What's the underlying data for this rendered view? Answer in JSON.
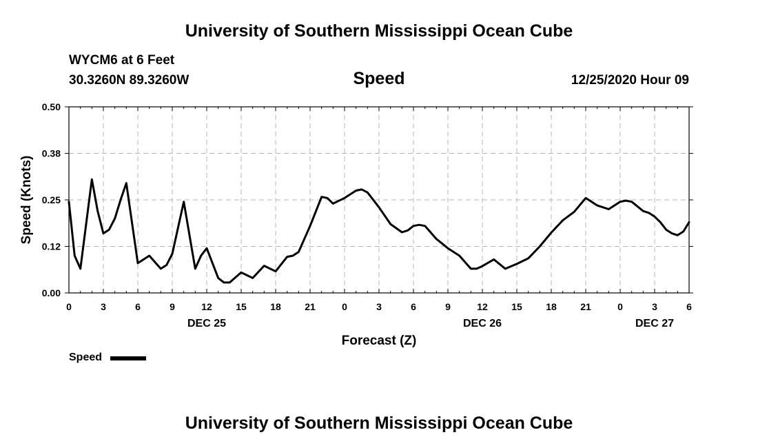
{
  "header": {
    "title": "University of Southern Mississippi Ocean Cube",
    "station": "WYCM6 at 6 Feet",
    "coords": "30.3260N 89.3260W",
    "chart_title": "Speed",
    "timestamp": "12/25/2020 Hour 09"
  },
  "footer": {
    "title": "University of Southern Mississippi Ocean Cube"
  },
  "legend": {
    "label": "Speed"
  },
  "colors": {
    "line": "#000000",
    "grid": "#b4b4b4"
  },
  "chart_data": {
    "type": "line",
    "title": "Speed",
    "xlabel": "Forecast (Z)",
    "ylabel": "Speed (Knots)",
    "xlim": [
      0,
      54
    ],
    "ylim": [
      0,
      0.5
    ],
    "y_ticks": [
      0,
      0.125,
      0.25,
      0.375,
      0.5
    ],
    "y_tick_labels": [
      "0.00",
      "0.12",
      "0.25",
      "0.38",
      "0.50"
    ],
    "x_ticks": [
      0,
      3,
      6,
      9,
      12,
      15,
      18,
      21,
      24,
      27,
      30,
      33,
      36,
      39,
      42,
      45,
      48,
      51,
      54
    ],
    "x_tick_labels": [
      "0",
      "3",
      "6",
      "9",
      "12",
      "15",
      "18",
      "21",
      "0",
      "3",
      "6",
      "9",
      "12",
      "15",
      "18",
      "21",
      "0",
      "3",
      "6"
    ],
    "day_labels": [
      {
        "x": 12,
        "label": "DEC 25"
      },
      {
        "x": 36,
        "label": "DEC 26"
      },
      {
        "x": 51,
        "label": "DEC 27"
      }
    ],
    "grid": true,
    "series": [
      {
        "name": "Speed",
        "x": [
          0,
          0.5,
          1,
          2,
          2.5,
          3,
          3.5,
          4,
          4.5,
          5,
          6,
          7,
          8,
          8.5,
          9,
          10,
          11,
          11.5,
          12,
          13,
          13.5,
          14,
          15,
          16,
          17,
          18,
          19,
          19.5,
          20,
          21,
          22,
          22.5,
          23,
          24,
          25,
          25.5,
          26,
          27,
          28,
          29,
          29.5,
          30,
          30.5,
          31,
          32,
          33,
          34,
          35,
          35.5,
          36,
          37,
          38,
          39,
          40,
          41,
          42,
          43,
          44,
          45,
          46,
          47,
          47.5,
          48,
          48.5,
          49,
          50,
          50.5,
          51,
          51.5,
          52,
          52.5,
          53,
          53.5,
          54
        ],
        "values": [
          0.245,
          0.1,
          0.065,
          0.305,
          0.22,
          0.16,
          0.17,
          0.2,
          0.25,
          0.295,
          0.08,
          0.1,
          0.065,
          0.075,
          0.105,
          0.245,
          0.065,
          0.1,
          0.12,
          0.04,
          0.028,
          0.028,
          0.055,
          0.04,
          0.073,
          0.058,
          0.097,
          0.1,
          0.11,
          0.18,
          0.258,
          0.255,
          0.24,
          0.255,
          0.275,
          0.278,
          0.27,
          0.23,
          0.185,
          0.163,
          0.168,
          0.18,
          0.183,
          0.18,
          0.145,
          0.12,
          0.1,
          0.065,
          0.065,
          0.072,
          0.09,
          0.065,
          0.078,
          0.093,
          0.125,
          0.162,
          0.195,
          0.218,
          0.255,
          0.235,
          0.225,
          0.235,
          0.245,
          0.248,
          0.245,
          0.22,
          0.215,
          0.205,
          0.19,
          0.17,
          0.16,
          0.155,
          0.165,
          0.19
        ]
      }
    ]
  }
}
